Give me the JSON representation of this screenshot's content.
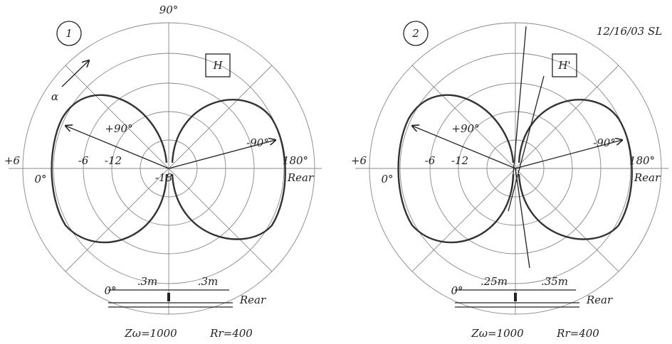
{
  "panels": [
    {
      "label": "1",
      "angle_top": "90°",
      "box_label": "H",
      "alpha": "α",
      "left_arrow": "+90°",
      "right_arrow": "-90°",
      "left_outer": "+6",
      "left_angle": "0°",
      "ring_labels": [
        "-6",
        "-12",
        "-18"
      ],
      "right_angle": "180°",
      "right_side": "Rear",
      "inset": {
        "left_distance": ".3m",
        "right_distance": ".3m",
        "left_end": "0°",
        "right_end": "Rear",
        "impedance": "Zω=1000",
        "resistance": "Rr=400"
      }
    },
    {
      "label": "2",
      "date": "12/16/03 SL",
      "box_label": "H'",
      "left_arrow": "+90°",
      "right_arrow": "-90°",
      "left_outer": "+6",
      "left_angle": "0°",
      "ring_labels": [
        "-6",
        "-12"
      ],
      "right_angle": "180°",
      "right_side": "Rear",
      "inset": {
        "left_distance": ".25m",
        "right_distance": ".35m",
        "left_end": "0°",
        "right_end": "Rear",
        "impedance": "Zω=1000",
        "resistance": "Rr=400"
      }
    }
  ]
}
